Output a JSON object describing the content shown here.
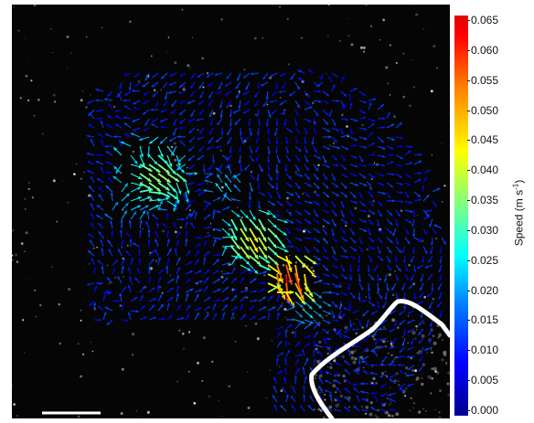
{
  "figure": {
    "colorbar": {
      "label": "Speed (m s",
      "label_sup": "-1",
      "label_close": ")",
      "ticks": [
        "0.065",
        "0.060",
        "0.055",
        "0.050",
        "0.045",
        "0.040",
        "0.035",
        "0.030",
        "0.025",
        "0.020",
        "0.015",
        "0.010",
        "0.005",
        "0.000"
      ],
      "colors": {
        "low": "#00008f",
        "mid": "#00ffff",
        "high": "#ff0000"
      }
    },
    "scale_bar": {
      "visible": true,
      "color": "#ffffff"
    },
    "boundary_color": "#ffffff"
  }
}
